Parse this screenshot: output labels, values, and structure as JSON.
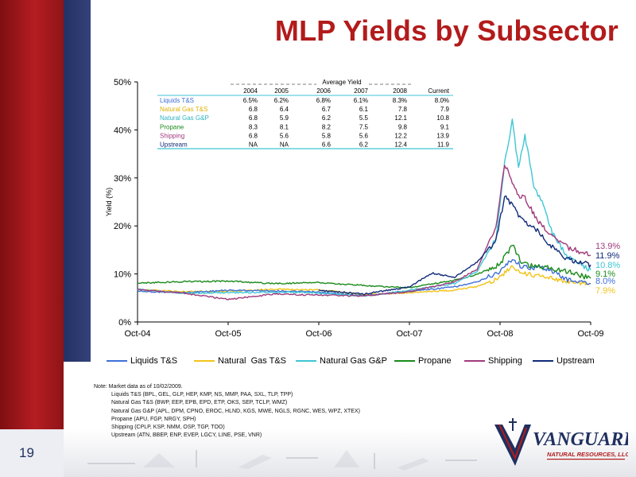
{
  "slide": {
    "title": "MLP Yields by Subsector",
    "page_number": "19",
    "colors": {
      "brand_red": "#b31b1b",
      "brand_navy": "#1f2f5f",
      "left_red": "#a7171b",
      "navy_panel": "#2d3a6d"
    }
  },
  "chart_data": {
    "type": "line",
    "ylabel": "Yield (%)",
    "y_ticks": [
      "0%",
      "10%",
      "20%",
      "30%",
      "40%",
      "50%"
    ],
    "ylim": [
      0,
      50
    ],
    "x_ticks": [
      "Oct-04",
      "Oct-05",
      "Oct-06",
      "Oct-07",
      "Oct-08",
      "Oct-09"
    ],
    "xlim": [
      "2004-10-01",
      "2009-10-02"
    ],
    "grid": false,
    "legend_position": "bottom",
    "series": [
      {
        "name": "Liquids T&S",
        "color": "#3f6fd8",
        "points": [
          [
            "2004-10-01",
            6.4
          ],
          [
            "2005-04-01",
            6.1
          ],
          [
            "2005-10-01",
            6.6
          ],
          [
            "2006-04-01",
            6.5
          ],
          [
            "2006-10-01",
            6.2
          ],
          [
            "2007-04-01",
            5.5
          ],
          [
            "2007-10-01",
            6.4
          ],
          [
            "2008-04-01",
            7.3
          ],
          [
            "2008-07-01",
            8.3
          ],
          [
            "2008-10-01",
            10.5
          ],
          [
            "2008-11-20",
            13.2
          ],
          [
            "2009-01-01",
            11.4
          ],
          [
            "2009-04-01",
            11.3
          ],
          [
            "2009-07-01",
            8.8
          ],
          [
            "2009-10-02",
            8.0
          ]
        ]
      },
      {
        "name": "Natural  Gas T&S",
        "color": "#f2c419",
        "points": [
          [
            "2004-10-01",
            6.7
          ],
          [
            "2005-04-01",
            6.3
          ],
          [
            "2005-10-01",
            6.4
          ],
          [
            "2006-04-01",
            6.8
          ],
          [
            "2006-10-01",
            6.7
          ],
          [
            "2007-04-01",
            5.7
          ],
          [
            "2007-10-01",
            6.1
          ],
          [
            "2008-04-01",
            6.6
          ],
          [
            "2008-07-01",
            7.4
          ],
          [
            "2008-10-01",
            9.2
          ],
          [
            "2008-11-20",
            11.7
          ],
          [
            "2009-01-01",
            10.0
          ],
          [
            "2009-04-01",
            9.6
          ],
          [
            "2009-07-01",
            8.4
          ],
          [
            "2009-10-02",
            7.9
          ]
        ]
      },
      {
        "name": "Natural Gas G&P",
        "color": "#3fc6d4",
        "points": [
          [
            "2004-10-01",
            6.8
          ],
          [
            "2005-04-01",
            6.0
          ],
          [
            "2005-10-01",
            6.1
          ],
          [
            "2006-04-01",
            6.2
          ],
          [
            "2006-10-01",
            6.1
          ],
          [
            "2007-04-01",
            5.4
          ],
          [
            "2007-10-01",
            6.6
          ],
          [
            "2008-04-01",
            8.0
          ],
          [
            "2008-07-01",
            10.5
          ],
          [
            "2008-09-15",
            17.5
          ],
          [
            "2008-10-20",
            33.0
          ],
          [
            "2008-11-20",
            42.0
          ],
          [
            "2008-12-15",
            32.0
          ],
          [
            "2009-01-10",
            39.0
          ],
          [
            "2009-02-15",
            28.0
          ],
          [
            "2009-03-20",
            25.0
          ],
          [
            "2009-05-01",
            18.5
          ],
          [
            "2009-07-01",
            13.5
          ],
          [
            "2009-10-02",
            10.8
          ]
        ]
      },
      {
        "name": "Propane",
        "color": "#1a8a1a",
        "points": [
          [
            "2004-10-01",
            8.1
          ],
          [
            "2005-04-01",
            8.4
          ],
          [
            "2005-10-01",
            8.5
          ],
          [
            "2006-04-01",
            8.0
          ],
          [
            "2006-10-01",
            8.2
          ],
          [
            "2007-04-01",
            7.6
          ],
          [
            "2007-10-01",
            7.1
          ],
          [
            "2008-04-01",
            8.7
          ],
          [
            "2008-07-01",
            9.9
          ],
          [
            "2008-10-01",
            12.0
          ],
          [
            "2008-11-20",
            16.0
          ],
          [
            "2009-01-01",
            12.0
          ],
          [
            "2009-04-01",
            11.4
          ],
          [
            "2009-07-01",
            10.5
          ],
          [
            "2009-10-02",
            9.1
          ]
        ]
      },
      {
        "name": "Shipping",
        "color": "#a03a7c",
        "points": [
          [
            "2004-10-01",
            6.8
          ],
          [
            "2005-04-01",
            6.0
          ],
          [
            "2005-10-01",
            4.7
          ],
          [
            "2006-04-01",
            5.8
          ],
          [
            "2006-10-01",
            5.6
          ],
          [
            "2007-04-01",
            5.4
          ],
          [
            "2007-10-01",
            6.3
          ],
          [
            "2008-04-01",
            8.3
          ],
          [
            "2008-07-01",
            11.0
          ],
          [
            "2008-09-15",
            20.0
          ],
          [
            "2008-10-20",
            33.0
          ],
          [
            "2008-11-20",
            29.0
          ],
          [
            "2008-12-15",
            26.0
          ],
          [
            "2009-01-10",
            26.0
          ],
          [
            "2009-03-01",
            21.0
          ],
          [
            "2009-05-01",
            18.0
          ],
          [
            "2009-07-01",
            15.5
          ],
          [
            "2009-10-02",
            13.9
          ]
        ]
      },
      {
        "name": "Upstream",
        "color": "#112a78",
        "points": [
          [
            "2006-10-01",
            6.6
          ],
          [
            "2007-04-01",
            5.8
          ],
          [
            "2007-10-01",
            7.3
          ],
          [
            "2008-01-01",
            10.2
          ],
          [
            "2008-04-01",
            9.3
          ],
          [
            "2008-07-01",
            12.5
          ],
          [
            "2008-09-15",
            17.0
          ],
          [
            "2008-10-20",
            26.0
          ],
          [
            "2008-11-20",
            24.5
          ],
          [
            "2008-12-15",
            22.0
          ],
          [
            "2009-01-10",
            21.0
          ],
          [
            "2009-03-01",
            19.0
          ],
          [
            "2009-05-01",
            15.5
          ],
          [
            "2009-07-01",
            13.0
          ],
          [
            "2009-10-02",
            11.9
          ]
        ]
      }
    ],
    "end_labels": [
      {
        "text": "13.9%",
        "color": "#a03a7c"
      },
      {
        "text": "11.9%",
        "color": "#112a78"
      },
      {
        "text": "10.8%",
        "color": "#3fc6d4"
      },
      {
        "text": "9.1%",
        "color": "#1a8a1a"
      },
      {
        "text": "8.0%",
        "color": "#3f6fd8"
      },
      {
        "text": "7.9%",
        "color": "#f2c419"
      }
    ]
  },
  "yield_table": {
    "title": "Average Yield",
    "headers": [
      "2004",
      "2005",
      "2006",
      "2007",
      "2008",
      "Current"
    ],
    "rows": [
      {
        "label": "Liquids T&S",
        "color": "#3f6fd8",
        "values": [
          "6.5%",
          "6.2%",
          "6.8%",
          "6.1%",
          "8.3%",
          "8.0%"
        ]
      },
      {
        "label": "Natural  Gas T&S",
        "color": "#e0b000",
        "values": [
          "6.8",
          "6.4",
          "6.7",
          "6.1",
          "7.8",
          "7.9"
        ]
      },
      {
        "label": "Natural Gas G&P",
        "color": "#2fb3c0",
        "values": [
          "6.8",
          "5.9",
          "6.2",
          "5.5",
          "12.1",
          "10.8"
        ]
      },
      {
        "label": "Propane",
        "color": "#1a8a1a",
        "values": [
          "8.3",
          "8.1",
          "8.2",
          "7.5",
          "9.8",
          "9.1"
        ]
      },
      {
        "label": "Shipping",
        "color": "#a03a7c",
        "values": [
          "6.8",
          "5.6",
          "5.8",
          "5.6",
          "12.2",
          "13.9"
        ]
      },
      {
        "label": "Upstream",
        "color": "#112a78",
        "values": [
          "NA",
          "NA",
          "6.6",
          "6.2",
          "12.4",
          "11.9"
        ]
      }
    ]
  },
  "notes": {
    "lines": [
      "Note: Market data as of 10/02/2009.",
      "Liquids T&S (BPL, GEL, GLP, HEP, KMP, NS, MMP, PAA, SXL, TLP, TPP)",
      "Natural Gas T&S (BWP, EEP, EPB, EPD, ETP, OKS, SEP, TCLP, WMZ)",
      "Natural Gas G&P (APL, DPM, CPNO, EROC, HLND, KGS, MWE, NGLS, RGNC, WES, WPZ, XTEX)",
      "Propane (APU, FGP, NRGY, SPH)",
      "Shipping (CPLP, KSP, NMM, OSP, TGP, TOO)",
      "Upstream (ATN, BBEP, ENP, EVEP, LGCY, LINE, PSE, VNR)"
    ]
  },
  "logo": {
    "text_main": "VANGUARD",
    "text_sub": "NATURAL RESOURCES, LLC"
  }
}
